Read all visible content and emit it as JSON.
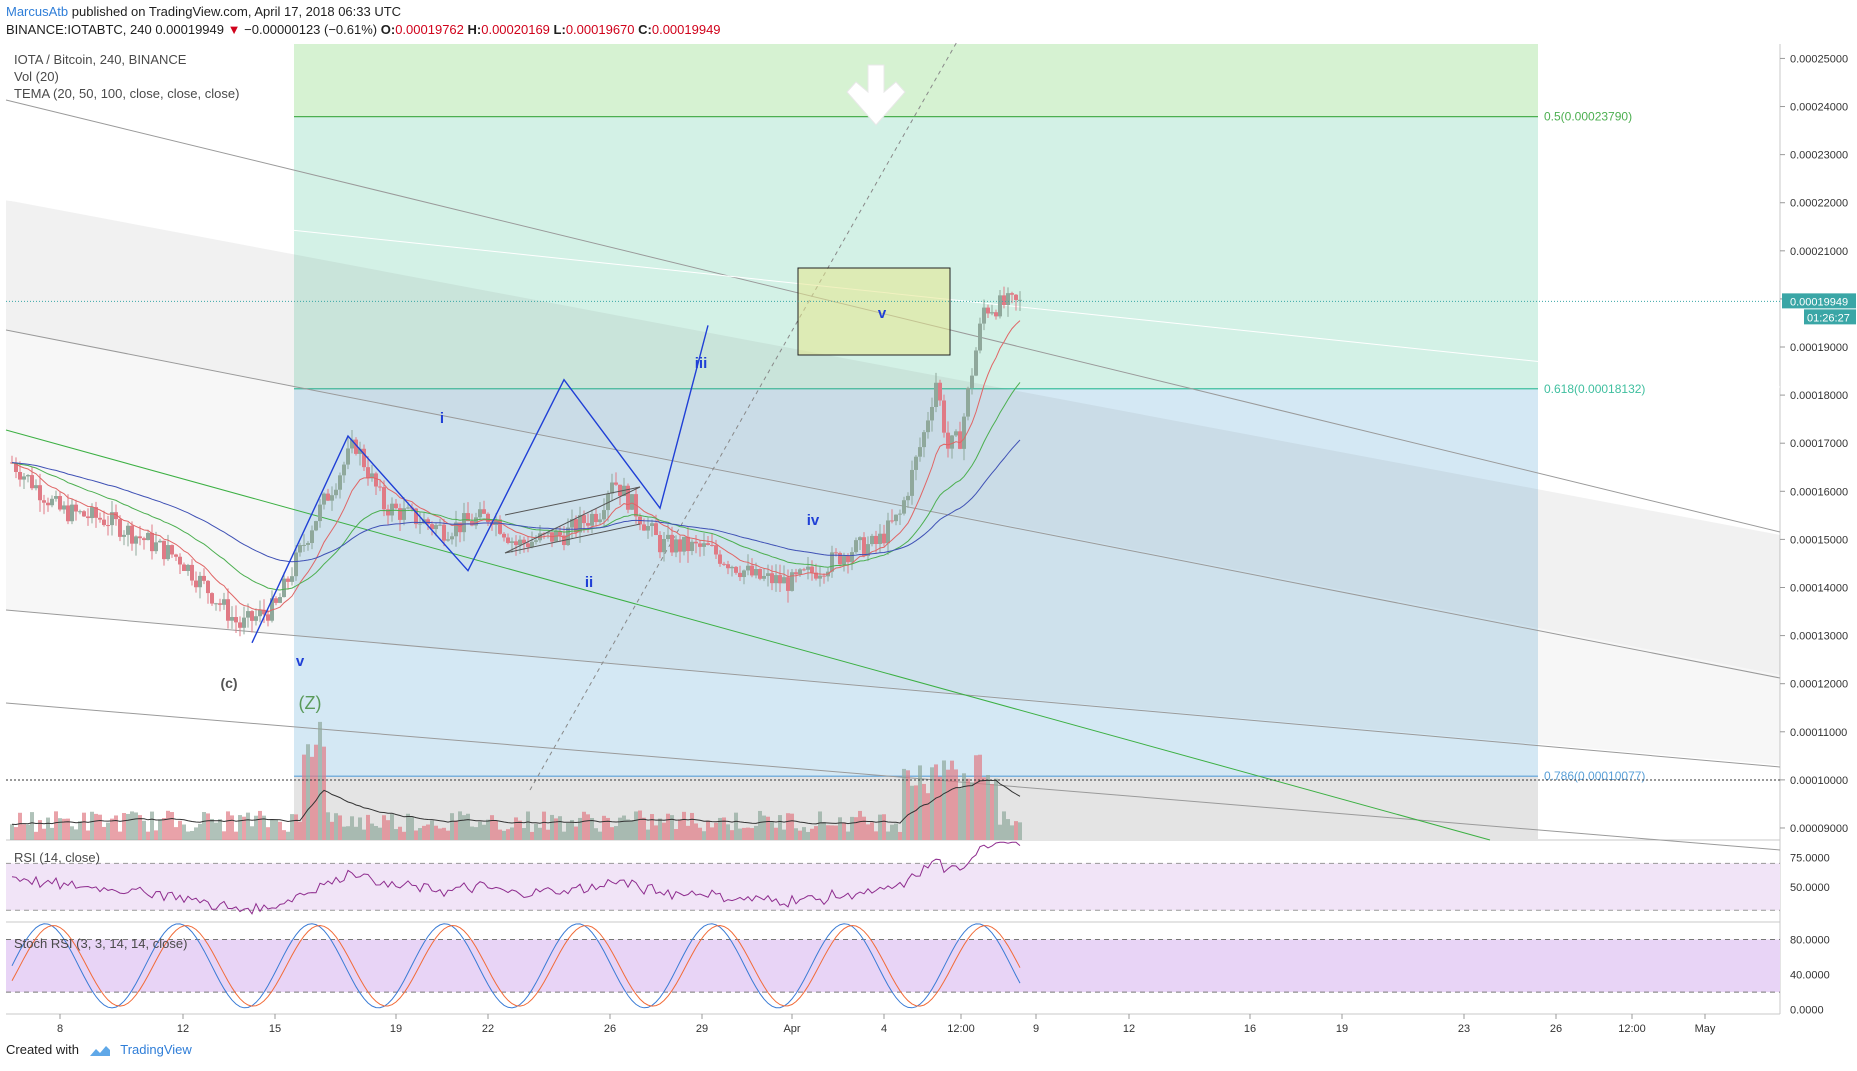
{
  "header": {
    "author": "MarcusAtb",
    "published": "published on TradingView.com, April 17, 2018 06:33 UTC",
    "symbol": "BINANCE:IOTABTC, 240",
    "last": "0.00019949",
    "change": "−0.00000123 (−0.61%)",
    "o_label": "O:",
    "o": "0.00019762",
    "h_label": "H:",
    "h": "0.00020169",
    "l_label": "L:",
    "l": "0.00019670",
    "c_label": "C:",
    "c": "0.00019949",
    "down_arrow": "▼"
  },
  "legend": {
    "main": "IOTA / Bitcoin, 240, BINANCE",
    "vol": "Vol (20)",
    "tema": "TEMA (20, 50, 100, close, close, close)",
    "rsi": "RSI (14, close)",
    "stoch": "Stoch RSI (3, 3, 14, 14, close)"
  },
  "footer": {
    "created": "Created with",
    "brand": "TradingView"
  },
  "colors": {
    "up": "#8fa89b",
    "down": "#e07a85",
    "wave": "#1f3fd6",
    "fib_green": "#4caf50",
    "fib_teal": "#3fbf9f",
    "fib_blue": "#5aa0d8",
    "tema1": "#e06666",
    "tema2": "#4caf50",
    "tema3": "#3f51b5",
    "rsi": "#8e2c8e",
    "stoch_k": "#3a7bd5",
    "stoch_d": "#f26b38"
  },
  "chart_data": {
    "type": "candlestick",
    "title": "IOTA / Bitcoin, 240, BINANCE",
    "price_axis": [
      "0.00025000",
      "0.00024000",
      "0.00023000",
      "0.00022000",
      "0.00021000",
      "0.00020000",
      "0.00019000",
      "0.00018000",
      "0.00017000",
      "0.00016000",
      "0.00015000",
      "0.00014000",
      "0.00013000",
      "0.00012000",
      "0.00011000",
      "0.00010000",
      "0.00009000"
    ],
    "ylim": [
      8.75e-05,
      0.000253
    ],
    "time_axis": [
      "8",
      "12",
      "15",
      "19",
      "22",
      "26",
      "29",
      "Apr",
      "4",
      "12:00",
      "9",
      "12",
      "16",
      "19",
      "23",
      "26",
      "12:00",
      "May"
    ],
    "last_price_label": "0.00019949",
    "countdown_label": "01:26:27",
    "fib_levels": [
      {
        "label": "0.5(0.00023790)",
        "value": 0.0002379
      },
      {
        "label": "0.618(0.00018132)",
        "value": 0.00018132
      },
      {
        "label": "0.786(0.00010077)",
        "value": 0.00010077
      }
    ],
    "wave_labels": [
      "v",
      "i",
      "ii",
      "iii",
      "iv",
      "v",
      "(c)",
      "(Z)"
    ],
    "wave_path": [
      {
        "date": "Mar 16",
        "price": 0.0001285
      },
      {
        "date": "Mar 20",
        "price": 0.0001715
      },
      {
        "date": "Mar 25",
        "price": 0.0001435
      },
      {
        "date": "Mar 29",
        "price": 0.0001832
      },
      {
        "date": "Apr 2",
        "price": 0.0001565
      },
      {
        "date": "Apr 4",
        "price": 0.0001945
      }
    ],
    "rsi": {
      "axis": [
        "75.0000",
        "50.0000"
      ],
      "levels": [
        70,
        30
      ],
      "range": [
        20,
        90
      ]
    },
    "stoch_rsi": {
      "axis": [
        "80.0000",
        "40.0000",
        "0.0000"
      ],
      "levels": [
        80,
        20
      ],
      "range": [
        -5,
        100
      ]
    },
    "series": [
      {
        "name": "Vol (20)"
      },
      {
        "name": "TEMA (20, 50, 100, close, close, close)"
      },
      {
        "name": "RSI (14, close)"
      },
      {
        "name": "Stoch RSI (3, 3, 14, 14, close)"
      }
    ]
  }
}
